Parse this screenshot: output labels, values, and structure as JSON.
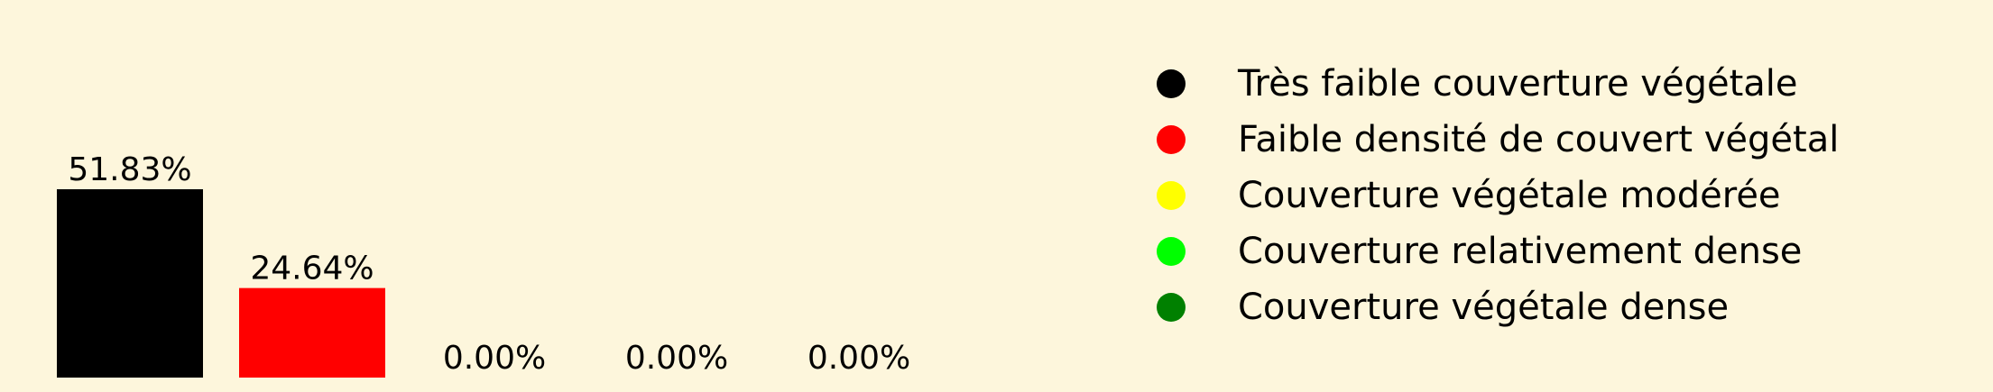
{
  "chart_data": {
    "type": "bar",
    "title": "",
    "xlabel": "",
    "ylabel": "",
    "ylim": [
      0,
      51.83
    ],
    "grid": false,
    "legend_position": "right",
    "categories": [
      "Très faible couverture végétale",
      "Faible densité de couvert végétal",
      "Couverture végétale modérée",
      "Couverture relativement dense",
      "Couverture végétale dense"
    ],
    "values": [
      51.83,
      24.64,
      0.0,
      0.0,
      0.0
    ],
    "data_labels": [
      "51.83%",
      "24.64%",
      "0.00%",
      "0.00%",
      "0.00%"
    ],
    "colors": [
      "#000000",
      "#ff0000",
      "#ffff00",
      "#00ff00",
      "#008000"
    ]
  }
}
